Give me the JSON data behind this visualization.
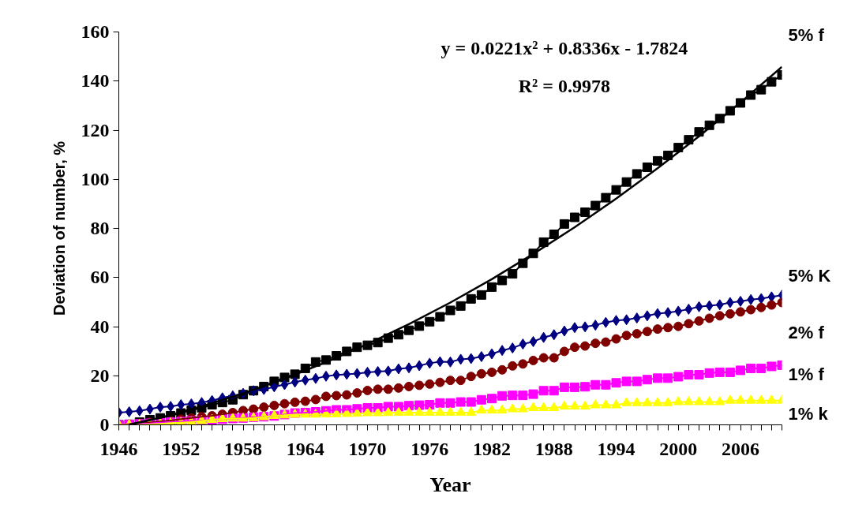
{
  "chart_data": {
    "type": "line",
    "xlabel": "Year",
    "ylabel": "Deviation of number, %",
    "annotations": [
      "y = 0.0221x² + 0.8336x - 1.7824",
      "R² = 0.9978"
    ],
    "x": [
      1946,
      1947,
      1948,
      1949,
      1950,
      1951,
      1952,
      1953,
      1954,
      1955,
      1956,
      1957,
      1958,
      1959,
      1960,
      1961,
      1962,
      1963,
      1964,
      1965,
      1966,
      1967,
      1968,
      1969,
      1970,
      1971,
      1972,
      1973,
      1974,
      1975,
      1976,
      1977,
      1978,
      1979,
      1980,
      1981,
      1982,
      1983,
      1984,
      1985,
      1986,
      1987,
      1988,
      1989,
      1990,
      1991,
      1992,
      1993,
      1994,
      1995,
      1996,
      1997,
      1998,
      1999,
      2000,
      2001,
      2002,
      2003,
      2004,
      2005,
      2006,
      2007,
      2008,
      2009,
      2010
    ],
    "xlim": [
      1946,
      2010
    ],
    "ylim": [
      0,
      160
    ],
    "yticks": [
      0,
      20,
      40,
      60,
      80,
      100,
      120,
      140,
      160
    ],
    "xticks": [
      1946,
      {
        "value": 1947,
        "label": null
      },
      {
        "value": 1948,
        "label": null
      },
      {
        "value": 1949,
        "label": null
      },
      {
        "value": 1950,
        "label": null
      },
      {
        "value": 1951,
        "label": null
      },
      1952,
      {
        "value": 1953,
        "label": null
      },
      {
        "value": 1954,
        "label": null
      },
      {
        "value": 1955,
        "label": null
      },
      {
        "value": 1956,
        "label": null
      },
      {
        "value": 1957,
        "label": null
      },
      1958,
      {
        "value": 1959,
        "label": null
      },
      {
        "value": 1960,
        "label": null
      },
      {
        "value": 1961,
        "label": null
      },
      {
        "value": 1962,
        "label": null
      },
      {
        "value": 1963,
        "label": null
      },
      1964,
      {
        "value": 1965,
        "label": null
      },
      {
        "value": 1966,
        "label": null
      },
      {
        "value": 1967,
        "label": null
      },
      {
        "value": 1968,
        "label": null
      },
      {
        "value": 1969,
        "label": null
      },
      1970,
      {
        "value": 1971,
        "label": null
      },
      {
        "value": 1972,
        "label": null
      },
      {
        "value": 1973,
        "label": null
      },
      {
        "value": 1974,
        "label": null
      },
      {
        "value": 1975,
        "label": null
      },
      1976,
      {
        "value": 1977,
        "label": null
      },
      {
        "value": 1978,
        "label": null
      },
      {
        "value": 1979,
        "label": null
      },
      {
        "value": 1980,
        "label": null
      },
      {
        "value": 1981,
        "label": null
      },
      1982,
      {
        "value": 1983,
        "label": null
      },
      {
        "value": 1984,
        "label": null
      },
      {
        "value": 1985,
        "label": null
      },
      {
        "value": 1986,
        "label": null
      },
      {
        "value": 1987,
        "label": null
      },
      1988,
      {
        "value": 1989,
        "label": null
      },
      {
        "value": 1990,
        "label": null
      },
      {
        "value": 1991,
        "label": null
      },
      {
        "value": 1992,
        "label": null
      },
      {
        "value": 1993,
        "label": null
      },
      1994,
      {
        "value": 1995,
        "label": null
      },
      {
        "value": 1996,
        "label": null
      },
      {
        "value": 1997,
        "label": null
      },
      {
        "value": 1998,
        "label": null
      },
      {
        "value": 1999,
        "label": null
      },
      2000,
      {
        "value": 2001,
        "label": null
      },
      {
        "value": 2002,
        "label": null
      },
      {
        "value": 2003,
        "label": null
      },
      {
        "value": 2004,
        "label": null
      },
      {
        "value": 2005,
        "label": null
      },
      2006,
      {
        "value": 2007,
        "label": null
      },
      {
        "value": 2008,
        "label": null
      },
      {
        "value": 2009,
        "label": null
      },
      {
        "value": 2010,
        "label": null
      }
    ],
    "grid": false,
    "series": [
      {
        "name": "5% f",
        "color": "#000000",
        "marker": "square",
        "values": [
          0.0,
          0.2,
          1.1,
          2.1,
          2.8,
          3.7,
          4.8,
          5.9,
          6.9,
          8.2,
          9.1,
          10.2,
          12.3,
          13.9,
          15.6,
          17.7,
          19.3,
          20.6,
          23.0,
          25.6,
          26.4,
          28.1,
          29.9,
          31.6,
          32.4,
          33.5,
          35.3,
          36.7,
          38.5,
          40.2,
          42.0,
          44.0,
          46.6,
          48.4,
          51.3,
          52.9,
          56.1,
          58.8,
          61.5,
          65.8,
          69.8,
          74.4,
          77.6,
          81.8,
          84.5,
          86.6,
          89.3,
          92.5,
          95.7,
          98.9,
          102.2,
          104.9,
          107.5,
          109.7,
          112.9,
          116.1,
          119.3,
          122.0,
          124.7,
          127.9,
          131.1,
          134.3,
          136.5,
          139.7,
          142.5
        ]
      },
      {
        "name": "5% K",
        "color": "#000080",
        "marker": "diamond",
        "values": [
          5.0,
          5.3,
          5.7,
          6.4,
          7.2,
          7.5,
          8.2,
          8.5,
          9.1,
          9.9,
          11.0,
          11.8,
          12.8,
          13.9,
          14.4,
          15.5,
          16.4,
          17.4,
          18.2,
          18.9,
          19.8,
          20.3,
          20.6,
          20.9,
          21.4,
          21.7,
          21.9,
          22.8,
          23.2,
          24.1,
          25.1,
          25.7,
          25.6,
          26.7,
          27.0,
          27.8,
          28.9,
          30.3,
          31.3,
          32.9,
          33.9,
          35.6,
          36.7,
          38.2,
          39.6,
          39.9,
          40.6,
          41.7,
          42.5,
          42.8,
          43.5,
          44.4,
          45.3,
          45.7,
          46.3,
          47.1,
          48.1,
          48.5,
          48.9,
          49.8,
          50.3,
          51.0,
          51.4,
          52.1,
          52.8
        ]
      },
      {
        "name": "2% f",
        "color": "#800000",
        "marker": "circle",
        "values": [
          0.0,
          0.3,
          0.6,
          1.0,
          1.4,
          1.8,
          2.3,
          2.8,
          3.3,
          3.7,
          4.3,
          5.0,
          5.8,
          6.4,
          7.2,
          7.9,
          8.6,
          9.2,
          9.6,
          10.3,
          11.6,
          11.9,
          12.2,
          13.0,
          14.0,
          14.5,
          14.5,
          15.0,
          15.6,
          16.1,
          16.6,
          17.3,
          18.1,
          18.1,
          19.7,
          20.8,
          21.4,
          22.4,
          24.0,
          24.8,
          26.2,
          27.3,
          27.3,
          29.9,
          31.6,
          32.1,
          33.2,
          33.7,
          35.0,
          36.4,
          37.1,
          38.0,
          39.0,
          39.6,
          40.1,
          41.2,
          42.3,
          43.4,
          44.4,
          45.2,
          46.0,
          46.9,
          47.8,
          48.8,
          49.8
        ]
      },
      {
        "name": "1% f",
        "color": "#ff00ff",
        "marker": "square",
        "values": [
          0.0,
          0.2,
          0.4,
          0.6,
          0.9,
          1.1,
          1.3,
          1.6,
          1.8,
          2.1,
          2.3,
          2.6,
          2.8,
          3.1,
          3.3,
          3.6,
          4.2,
          4.8,
          5.0,
          5.3,
          5.7,
          6.1,
          6.1,
          6.5,
          6.9,
          6.9,
          7.4,
          7.4,
          7.8,
          8.0,
          8.2,
          8.9,
          8.9,
          9.3,
          9.3,
          10.2,
          10.7,
          11.8,
          12.0,
          12.0,
          12.5,
          13.9,
          13.9,
          15.3,
          15.3,
          15.5,
          16.3,
          16.3,
          17.1,
          17.7,
          17.7,
          18.4,
          19.0,
          19.0,
          19.6,
          20.4,
          20.4,
          21.1,
          21.4,
          21.4,
          22.2,
          23.0,
          23.0,
          23.8,
          24.3
        ]
      },
      {
        "name": "1% k",
        "color": "#ffff00",
        "marker": "triangle",
        "values": [
          0.0,
          0.0,
          0.0,
          0.2,
          0.4,
          0.7,
          0.9,
          1.1,
          1.6,
          2.1,
          2.4,
          2.6,
          2.6,
          2.8,
          3.2,
          3.7,
          3.9,
          4.2,
          4.2,
          4.2,
          4.3,
          4.4,
          4.5,
          4.6,
          4.8,
          4.8,
          4.9,
          5.0,
          5.0,
          5.0,
          5.0,
          5.0,
          5.0,
          5.0,
          5.0,
          5.9,
          5.9,
          5.9,
          6.4,
          6.4,
          6.9,
          6.9,
          6.9,
          7.5,
          7.5,
          7.5,
          8.0,
          8.0,
          8.0,
          8.9,
          8.9,
          8.9,
          8.9,
          8.9,
          9.3,
          9.3,
          9.3,
          9.3,
          9.3,
          9.9,
          9.9,
          9.9,
          9.9,
          9.9,
          9.9
        ]
      },
      {
        "type": "line",
        "color": "#000000",
        "marker": "none",
        "x": [
          1947,
          1950,
          1954,
          1958,
          1962,
          1966,
          1970,
          1974,
          1978,
          1982,
          1986,
          1990,
          1994,
          1998,
          2002,
          2006,
          2010
        ],
        "values": [
          0.0,
          2.9,
          7.5,
          12.8,
          18.8,
          25.5,
          32.9,
          41.0,
          49.8,
          59.3,
          69.6,
          80.5,
          92.1,
          104.5,
          117.5,
          131.3,
          145.8
        ]
      }
    ]
  }
}
